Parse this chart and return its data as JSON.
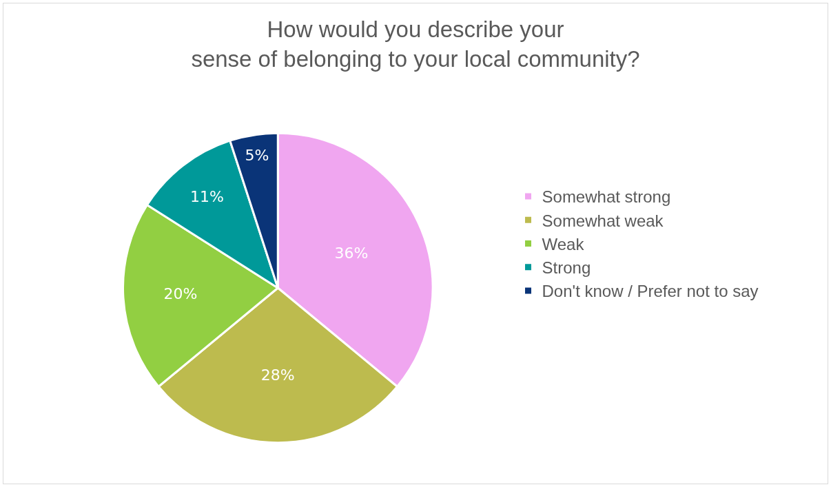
{
  "chart_data": {
    "type": "pie",
    "title": "How would you describe your\nsense of belonging to your local community?",
    "categories": [
      "Somewhat strong",
      "Somewhat weak",
      "Weak",
      "Strong",
      "Don't know / Prefer not to say"
    ],
    "values": [
      36,
      28,
      20,
      11,
      5
    ],
    "value_labels": [
      "36%",
      "28%",
      "20%",
      "11%",
      "5%"
    ],
    "colors": [
      "#f0a6f0",
      "#bdbb4e",
      "#92cf42",
      "#009999",
      "#0a3478"
    ],
    "legend": "right"
  }
}
